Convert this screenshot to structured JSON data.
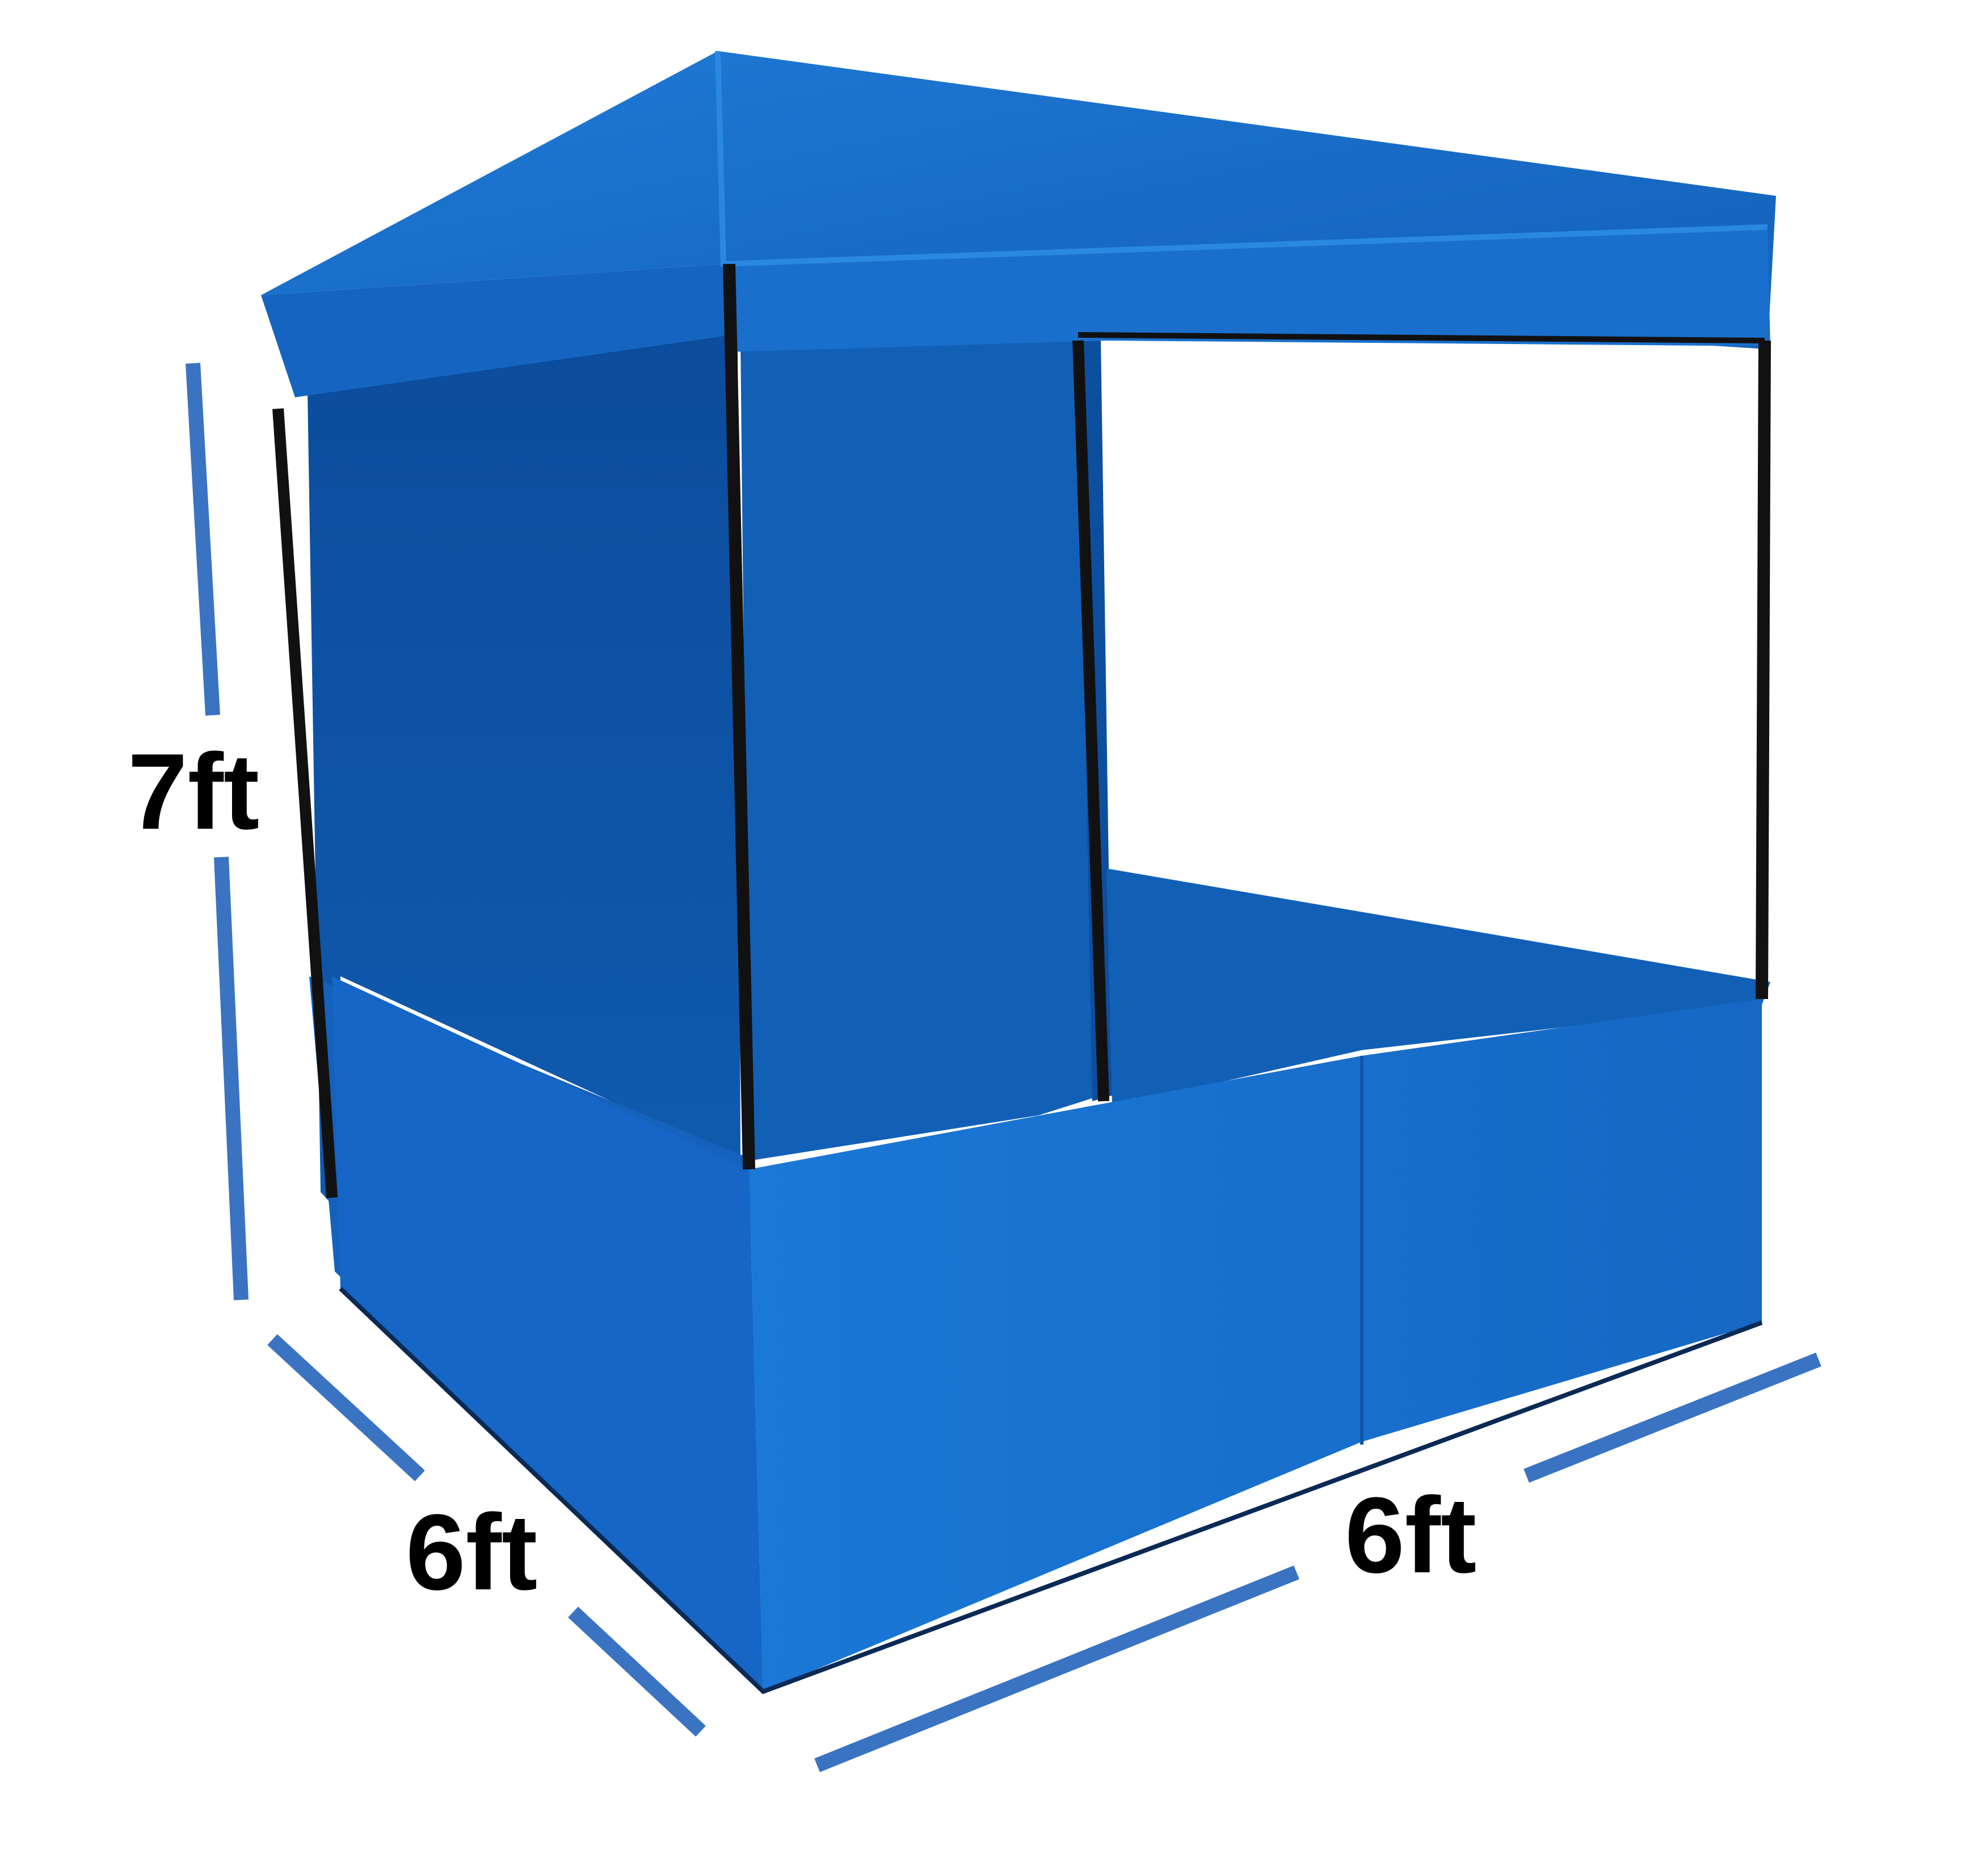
{
  "colors": {
    "background": "#ffffff",
    "canopy": "#1565c0",
    "canopy_light": "#1e78d0",
    "wall_back": "#0f55a8",
    "wall_side": "#1462bc",
    "wall_front": "#1874d2",
    "wall_inner": "#1260b6",
    "frame": "#111111",
    "dimension_line": "#3a73c2",
    "label": "#000000"
  },
  "dimensions": {
    "height_label": "7ft",
    "depth_label": "6ft",
    "width_label": "6ft"
  }
}
